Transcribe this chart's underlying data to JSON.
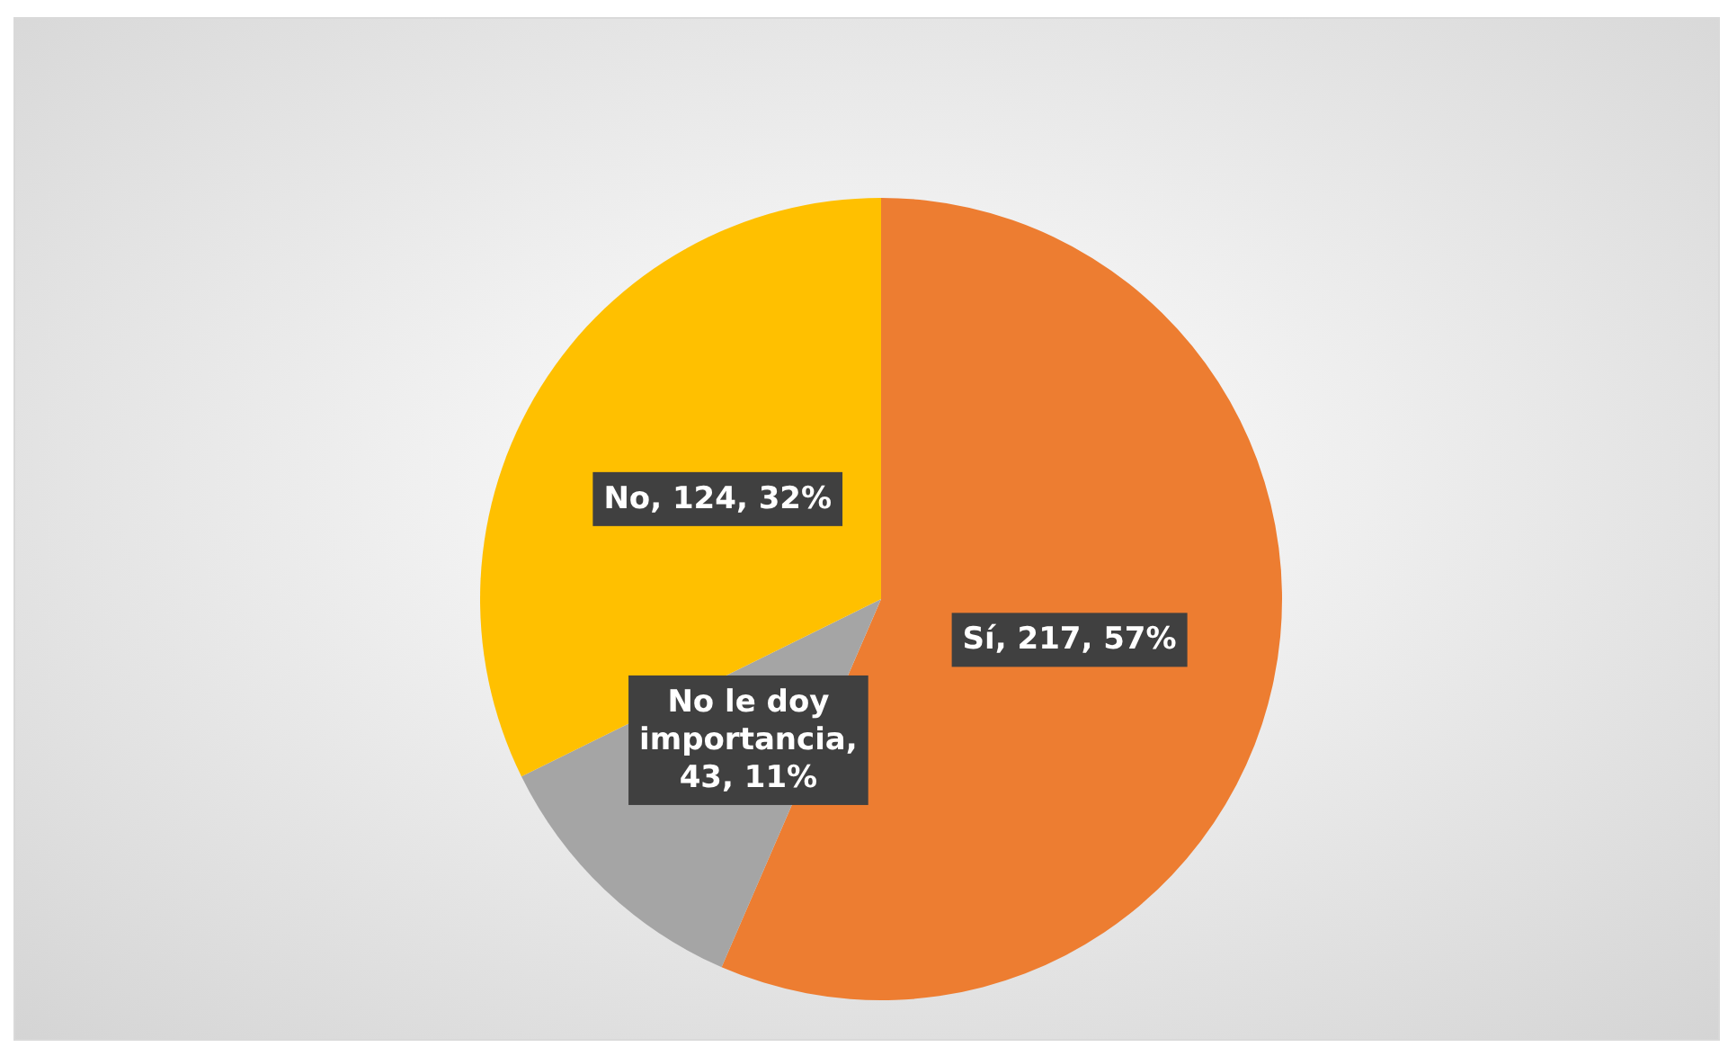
{
  "chart_data": {
    "type": "pie",
    "categories": [
      "Sí",
      "No le doy importancia",
      "No"
    ],
    "values": [
      217,
      43,
      124
    ],
    "value_labels": [
      ", 217, 57%",
      ", 43, 11%",
      ", 124, 32%"
    ],
    "colors": [
      "#ed7d31",
      "#a5a5a5",
      "#ffc000"
    ]
  }
}
